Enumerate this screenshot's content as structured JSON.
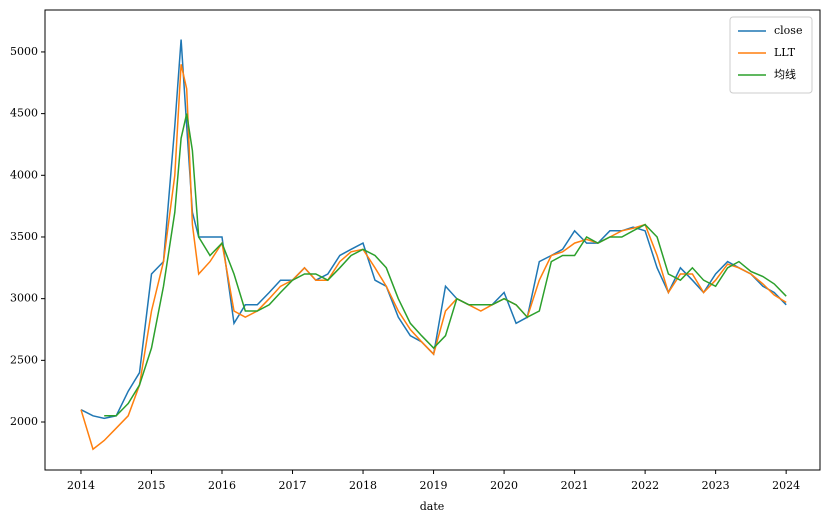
{
  "chart_data": {
    "type": "line",
    "x_label": "date",
    "x": [
      2014,
      2014.17,
      2014.33,
      2014.5,
      2014.67,
      2014.83,
      2015,
      2015.17,
      2015.33,
      2015.42,
      2015.5,
      2015.58,
      2015.67,
      2015.83,
      2016,
      2016.17,
      2016.33,
      2016.5,
      2016.67,
      2016.83,
      2017,
      2017.17,
      2017.33,
      2017.5,
      2017.67,
      2017.83,
      2018,
      2018.17,
      2018.33,
      2018.5,
      2018.67,
      2018.83,
      2019,
      2019.17,
      2019.33,
      2019.5,
      2019.67,
      2019.83,
      2020,
      2020.17,
      2020.33,
      2020.5,
      2020.67,
      2020.83,
      2021,
      2021.17,
      2021.33,
      2021.5,
      2021.67,
      2021.83,
      2022,
      2022.17,
      2022.33,
      2022.5,
      2022.67,
      2022.83,
      2023,
      2023.17,
      2023.33,
      2023.5,
      2023.67,
      2023.83,
      2024
    ],
    "series": [
      {
        "name": "close",
        "color": "#1f77b4",
        "values": [
          2100,
          2050,
          2030,
          2050,
          2250,
          2400,
          3200,
          3300,
          4400,
          5100,
          4400,
          3700,
          3500,
          3500,
          3500,
          2800,
          2950,
          2950,
          3050,
          3150,
          3150,
          3250,
          3150,
          3200,
          3350,
          3400,
          3450,
          3150,
          3100,
          2850,
          2700,
          2650,
          2550,
          3100,
          3000,
          2950,
          2950,
          2950,
          3050,
          2800,
          2850,
          3300,
          3350,
          3400,
          3550,
          3450,
          3450,
          3550,
          3550,
          3580,
          3550,
          3250,
          3050,
          3250,
          3150,
          3050,
          3200,
          3300,
          3250,
          3200,
          3100,
          3050,
          2950
        ]
      },
      {
        "name": "LLT",
        "color": "#ff7f0e",
        "values": [
          2100,
          1780,
          1850,
          1950,
          2050,
          2300,
          2900,
          3300,
          4000,
          4900,
          4700,
          3600,
          3200,
          3300,
          3450,
          2900,
          2850,
          2900,
          3000,
          3100,
          3150,
          3250,
          3150,
          3150,
          3300,
          3380,
          3400,
          3250,
          3100,
          2900,
          2750,
          2650,
          2550,
          2900,
          3000,
          2950,
          2900,
          2950,
          3000,
          2950,
          2850,
          3150,
          3350,
          3380,
          3450,
          3480,
          3450,
          3500,
          3550,
          3570,
          3600,
          3350,
          3050,
          3200,
          3200,
          3050,
          3150,
          3280,
          3250,
          3200,
          3120,
          3030,
          2970
        ]
      },
      {
        "name": "均线",
        "color": "#2ca02c",
        "values": [
          null,
          null,
          2050,
          2050,
          2150,
          2300,
          2600,
          3100,
          3700,
          4300,
          4500,
          4200,
          3500,
          3350,
          3450,
          3200,
          2900,
          2900,
          2950,
          3050,
          3150,
          3200,
          3200,
          3150,
          3250,
          3350,
          3400,
          3350,
          3250,
          3000,
          2800,
          2700,
          2600,
          2700,
          3000,
          2950,
          2950,
          2950,
          3000,
          2950,
          2850,
          2900,
          3300,
          3350,
          3350,
          3500,
          3450,
          3500,
          3500,
          3550,
          3600,
          3500,
          3200,
          3150,
          3250,
          3150,
          3100,
          3250,
          3300,
          3220,
          3180,
          3120,
          3020
        ]
      }
    ],
    "xlim": [
      2013.49,
      2024.48
    ],
    "xticks": [
      2014,
      2015,
      2016,
      2017,
      2018,
      2019,
      2020,
      2021,
      2022,
      2023,
      2024
    ],
    "ylim": [
      1611,
      5340
    ],
    "yticks": [
      2000,
      2500,
      3000,
      3500,
      4000,
      4500,
      5000
    ],
    "legend": "upper right"
  }
}
